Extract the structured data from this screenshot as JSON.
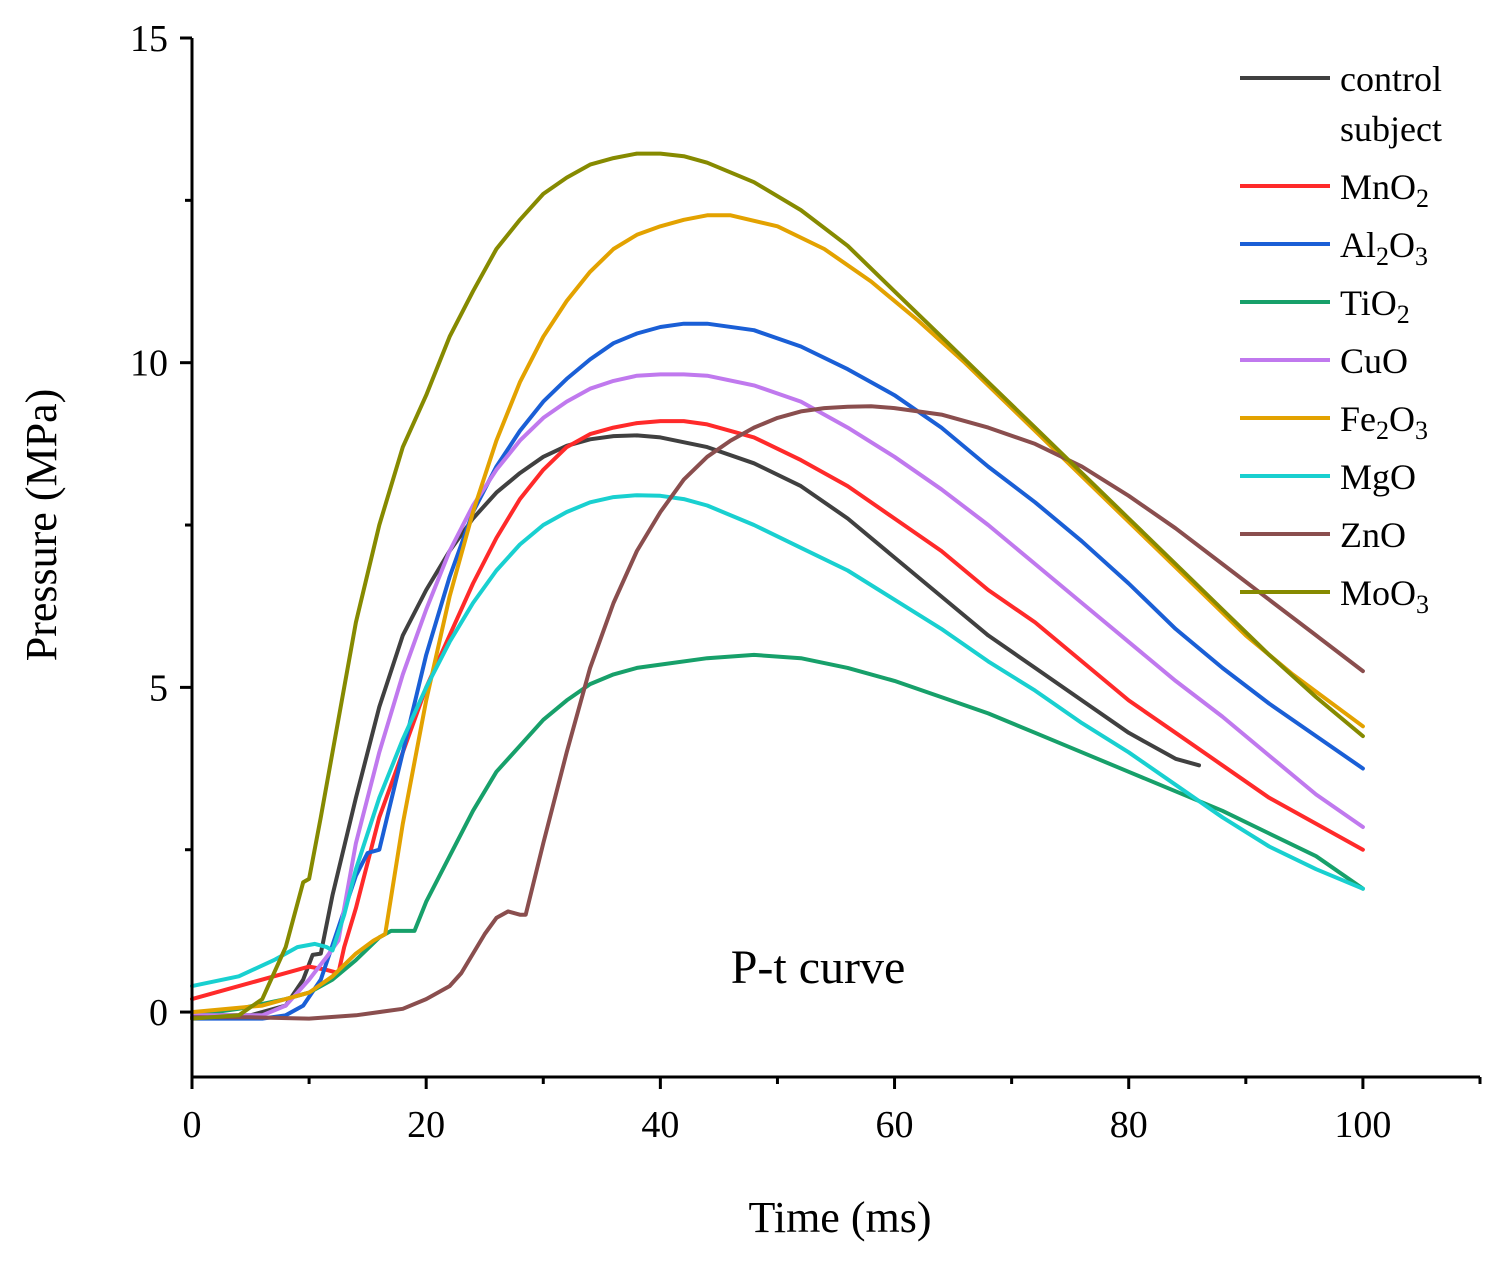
{
  "chart_data": {
    "type": "line",
    "title": "",
    "annotation": "P-t curve",
    "xlabel": "Time (ms)",
    "ylabel": "Pressure (MPa)",
    "xlim": [
      0,
      110
    ],
    "ylim": [
      -1,
      15
    ],
    "xticks": [
      0,
      20,
      40,
      60,
      80,
      100
    ],
    "xminor": [
      10,
      30,
      50,
      70,
      90,
      110
    ],
    "yticks": [
      0,
      5,
      10,
      15
    ],
    "yminor": [
      2.5,
      7.5,
      12.5
    ],
    "grid": false,
    "legend_position": "top-right",
    "series": [
      {
        "name": "control subject",
        "name_lines": [
          "control",
          "subject"
        ],
        "sub": "",
        "color": "#404040",
        "x": [
          0,
          5,
          8,
          9.5,
          10.3,
          11,
          12,
          14,
          16,
          18,
          20,
          22,
          24,
          26,
          28,
          30,
          32,
          34,
          36,
          38,
          40,
          44,
          48,
          52,
          56,
          60,
          64,
          68,
          72,
          76,
          80,
          84,
          86
        ],
        "y": [
          -0.05,
          -0.05,
          0.1,
          0.5,
          0.88,
          0.9,
          1.8,
          3.3,
          4.7,
          5.8,
          6.5,
          7.1,
          7.6,
          8.0,
          8.3,
          8.55,
          8.72,
          8.82,
          8.87,
          8.88,
          8.85,
          8.7,
          8.45,
          8.1,
          7.6,
          7.0,
          6.4,
          5.8,
          5.3,
          4.8,
          4.3,
          3.9,
          3.8
        ]
      },
      {
        "name": "MnO2",
        "name_lines": [
          "MnO"
        ],
        "sub": "2",
        "color": "#ff2a2a",
        "x": [
          0,
          4,
          8,
          10,
          11.5,
          12.5,
          13,
          14,
          15,
          16,
          18,
          20,
          22,
          24,
          26,
          28,
          30,
          32,
          34,
          36,
          38,
          40,
          42,
          44,
          48,
          52,
          56,
          60,
          64,
          68,
          72,
          76,
          80,
          84,
          88,
          92,
          96,
          100
        ],
        "y": [
          0.2,
          0.4,
          0.6,
          0.7,
          0.65,
          0.6,
          1.0,
          1.6,
          2.3,
          3.0,
          4.0,
          5.0,
          5.8,
          6.6,
          7.3,
          7.9,
          8.35,
          8.7,
          8.9,
          9.0,
          9.07,
          9.1,
          9.1,
          9.05,
          8.85,
          8.5,
          8.1,
          7.6,
          7.1,
          6.5,
          6.0,
          5.4,
          4.8,
          4.3,
          3.8,
          3.3,
          2.9,
          2.5
        ]
      },
      {
        "name": "Al2O3",
        "name_lines": [
          "Al"
        ],
        "sub": "2",
        "color": "#1a5fd6",
        "x": [
          0,
          6,
          8,
          9.5,
          11,
          12.5,
          14,
          15,
          16,
          18,
          20,
          22,
          24,
          26,
          28,
          30,
          32,
          34,
          36,
          38,
          40,
          42,
          44,
          48,
          52,
          56,
          60,
          64,
          68,
          72,
          76,
          80,
          84,
          88,
          92,
          96,
          100
        ],
        "y": [
          -0.1,
          -0.1,
          -0.05,
          0.1,
          0.5,
          1.3,
          2.1,
          2.45,
          2.5,
          4.0,
          5.5,
          6.7,
          7.7,
          8.4,
          8.95,
          9.4,
          9.75,
          10.05,
          10.3,
          10.45,
          10.55,
          10.6,
          10.6,
          10.5,
          10.25,
          9.9,
          9.5,
          9.0,
          8.4,
          7.85,
          7.25,
          6.6,
          5.9,
          5.3,
          4.75,
          4.25,
          3.75
        ]
      },
      {
        "name": "TiO2",
        "name_lines": [
          "TiO"
        ],
        "sub": "2",
        "color": "#17a06a",
        "x": [
          0,
          4,
          8,
          10,
          12,
          14,
          16,
          17,
          18,
          19,
          20,
          22,
          24,
          26,
          28,
          30,
          32,
          34,
          36,
          38,
          40,
          44,
          48,
          52,
          56,
          60,
          64,
          68,
          72,
          76,
          80,
          84,
          88,
          92,
          96,
          100
        ],
        "y": [
          -0.05,
          0.05,
          0.2,
          0.3,
          0.5,
          0.8,
          1.15,
          1.25,
          1.25,
          1.25,
          1.7,
          2.4,
          3.1,
          3.7,
          4.1,
          4.5,
          4.8,
          5.05,
          5.2,
          5.3,
          5.35,
          5.45,
          5.5,
          5.45,
          5.3,
          5.1,
          4.85,
          4.6,
          4.3,
          4.0,
          3.7,
          3.4,
          3.1,
          2.75,
          2.4,
          1.9
        ]
      },
      {
        "name": "CuO",
        "name_lines": [
          "CuO"
        ],
        "sub": "",
        "color": "#c079ee",
        "x": [
          0,
          6,
          8,
          10,
          11.5,
          12.5,
          14,
          16,
          18,
          20,
          22,
          24,
          26,
          28,
          30,
          32,
          34,
          36,
          38,
          40,
          42,
          44,
          48,
          52,
          56,
          60,
          64,
          68,
          72,
          76,
          80,
          84,
          88,
          92,
          96,
          100
        ],
        "y": [
          -0.05,
          -0.05,
          0.1,
          0.5,
          0.85,
          1.1,
          2.6,
          4.0,
          5.2,
          6.2,
          7.1,
          7.8,
          8.35,
          8.8,
          9.15,
          9.4,
          9.6,
          9.72,
          9.8,
          9.82,
          9.82,
          9.8,
          9.65,
          9.4,
          9.0,
          8.55,
          8.05,
          7.5,
          6.9,
          6.3,
          5.7,
          5.1,
          4.55,
          3.95,
          3.35,
          2.85
        ]
      },
      {
        "name": "Fe2O3",
        "name_lines": [
          "Fe"
        ],
        "sub": "2",
        "color": "#e3a200",
        "x": [
          0,
          6,
          10,
          12,
          14,
          15.5,
          16.5,
          18,
          20,
          22,
          24,
          26,
          28,
          30,
          32,
          34,
          36,
          38,
          40,
          42,
          44,
          46,
          50,
          54,
          58,
          62,
          66,
          70,
          74,
          78,
          82,
          86,
          90,
          94,
          100
        ],
        "y": [
          0.0,
          0.1,
          0.3,
          0.55,
          0.9,
          1.1,
          1.2,
          2.9,
          4.8,
          6.4,
          7.7,
          8.8,
          9.7,
          10.4,
          10.95,
          11.4,
          11.75,
          11.97,
          12.1,
          12.2,
          12.27,
          12.27,
          12.1,
          11.75,
          11.25,
          10.65,
          10.0,
          9.3,
          8.6,
          7.9,
          7.2,
          6.5,
          5.8,
          5.2,
          4.4
        ]
      },
      {
        "name": "MgO",
        "name_lines": [
          "MgO"
        ],
        "sub": "",
        "color": "#19d0d0",
        "x": [
          0,
          4,
          7,
          9,
          10.5,
          11.5,
          12,
          13,
          14,
          16,
          18,
          20,
          22,
          24,
          26,
          28,
          30,
          32,
          34,
          36,
          38,
          40,
          42,
          44,
          48,
          52,
          56,
          60,
          64,
          68,
          72,
          76,
          80,
          84,
          88,
          92,
          96,
          100
        ],
        "y": [
          0.4,
          0.55,
          0.8,
          1.0,
          1.05,
          1.0,
          0.95,
          1.5,
          2.2,
          3.3,
          4.2,
          5.0,
          5.7,
          6.3,
          6.8,
          7.2,
          7.5,
          7.7,
          7.85,
          7.93,
          7.96,
          7.95,
          7.9,
          7.8,
          7.5,
          7.15,
          6.8,
          6.35,
          5.9,
          5.4,
          4.95,
          4.45,
          4.0,
          3.5,
          3.0,
          2.55,
          2.2,
          1.9
        ]
      },
      {
        "name": "ZnO",
        "name_lines": [
          "ZnO"
        ],
        "sub": "",
        "color": "#8a4e4e",
        "x": [
          0,
          5,
          10,
          14,
          18,
          20,
          22,
          23,
          24,
          25,
          26,
          27,
          28,
          28.5,
          30,
          32,
          34,
          36,
          38,
          40,
          42,
          44,
          46,
          48,
          50,
          52,
          54,
          56,
          58,
          60,
          62,
          64,
          68,
          72,
          76,
          80,
          84,
          88,
          92,
          96,
          100
        ],
        "y": [
          -0.08,
          -0.08,
          -0.1,
          -0.05,
          0.05,
          0.2,
          0.4,
          0.6,
          0.9,
          1.2,
          1.45,
          1.55,
          1.5,
          1.5,
          2.6,
          4.0,
          5.3,
          6.3,
          7.1,
          7.7,
          8.2,
          8.55,
          8.8,
          9.0,
          9.15,
          9.25,
          9.3,
          9.32,
          9.33,
          9.3,
          9.25,
          9.2,
          9.0,
          8.75,
          8.4,
          7.95,
          7.45,
          6.9,
          6.35,
          5.8,
          5.25
        ]
      },
      {
        "name": "MoO3",
        "name_lines": [
          "MoO"
        ],
        "sub": "3",
        "color": "#868a00",
        "x": [
          0,
          4,
          6,
          8,
          9.5,
          10,
          11,
          12,
          13,
          14,
          16,
          18,
          20,
          22,
          24,
          26,
          28,
          30,
          32,
          34,
          36,
          38,
          40,
          42,
          44,
          48,
          52,
          56,
          60,
          64,
          68,
          72,
          76,
          80,
          84,
          88,
          92,
          96,
          100
        ],
        "y": [
          -0.1,
          -0.05,
          0.2,
          1.0,
          2.0,
          2.05,
          3.0,
          4.0,
          5.0,
          6.0,
          7.5,
          8.7,
          9.5,
          10.4,
          11.1,
          11.75,
          12.2,
          12.6,
          12.85,
          13.05,
          13.15,
          13.22,
          13.22,
          13.18,
          13.08,
          12.78,
          12.35,
          11.8,
          11.1,
          10.4,
          9.7,
          9.0,
          8.3,
          7.6,
          6.9,
          6.2,
          5.5,
          4.85,
          4.25
        ]
      }
    ]
  }
}
